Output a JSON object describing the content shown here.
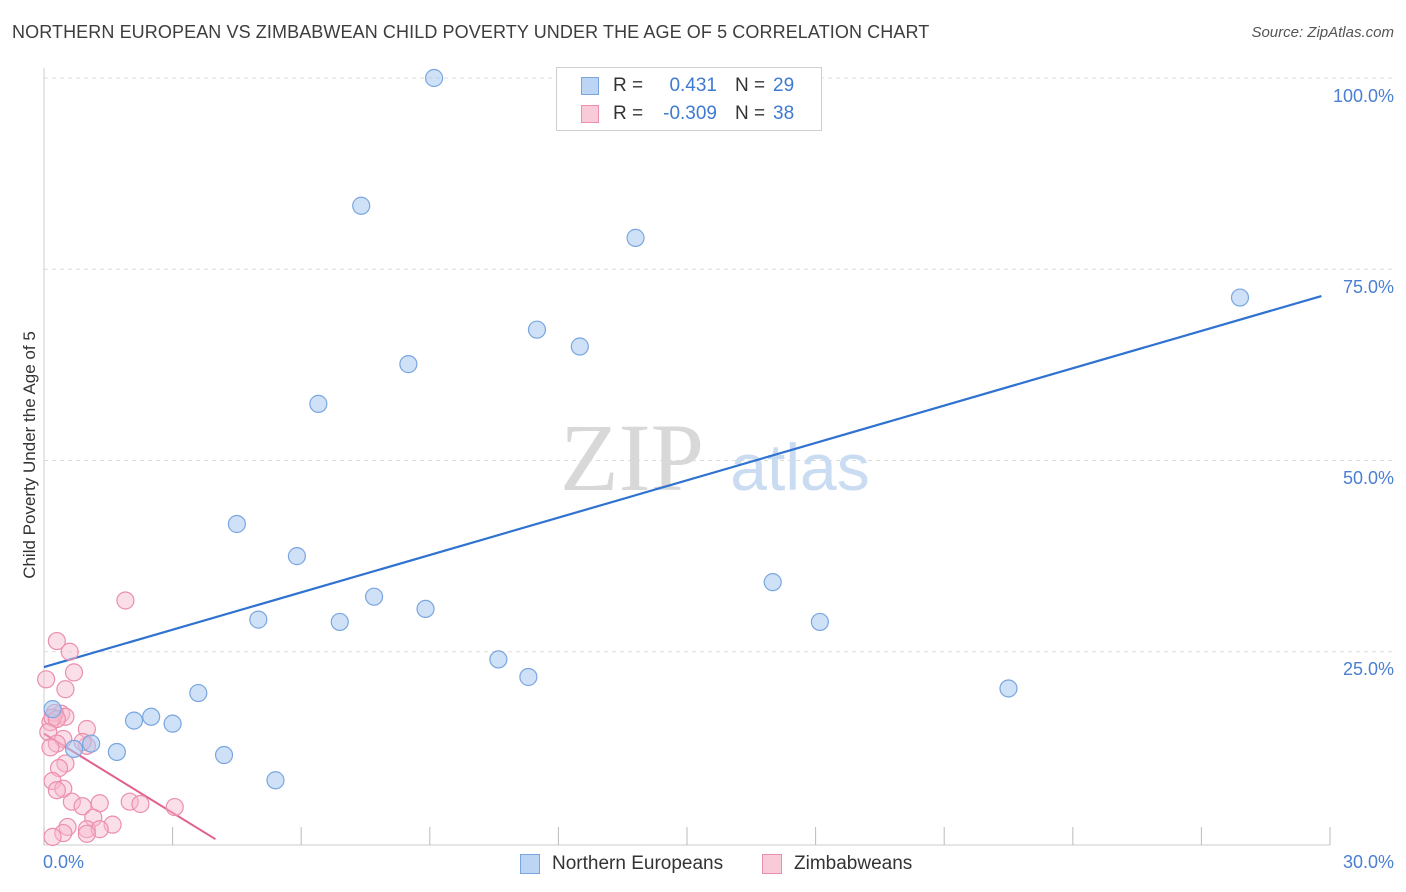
{
  "header": {
    "title": "NORTHERN EUROPEAN VS ZIMBABWEAN CHILD POVERTY UNDER THE AGE OF 5 CORRELATION CHART",
    "source": "Source: ZipAtlas.com"
  },
  "watermark": {
    "zip": "ZIP",
    "atlas": "atlas"
  },
  "legend_top": {
    "rows": [
      {
        "r_label": "R =",
        "r_value": "0.431",
        "n_label": "N =",
        "n_value": "29"
      },
      {
        "r_label": "R =",
        "r_value": "-0.309",
        "n_label": "N =",
        "n_value": "38"
      }
    ]
  },
  "legend_bottom": {
    "items": [
      {
        "label": "Northern Europeans"
      },
      {
        "label": "Zimbabweans"
      }
    ]
  },
  "colors": {
    "blue_fill": "#a8c8f0",
    "blue_stroke": "#7aa6e0",
    "blue_line": "#2f72d0",
    "pink_fill": "#f6b8cb",
    "pink_stroke": "#ec8fac",
    "pink_line": "#e0608f",
    "grid": "#dcdcdc",
    "tick_text": "#4a7fd4"
  },
  "chart_data": {
    "type": "scatter",
    "title": "NORTHERN EUROPEAN VS ZIMBABWEAN CHILD POVERTY UNDER THE AGE OF 5 CORRELATION CHART",
    "xlabel": "",
    "ylabel": "Child Poverty Under the Age of 5",
    "xlim": [
      0,
      30
    ],
    "ylim": [
      0,
      100
    ],
    "x_tick_labels": [
      "0.0%",
      "30.0%"
    ],
    "y_ticks": [
      25,
      50,
      75,
      100
    ],
    "y_tick_labels": [
      "25.0%",
      "50.0%",
      "75.0%",
      "100.0%"
    ],
    "grid": true,
    "legend_position": "top-center",
    "series": [
      {
        "name": "Northern Europeans",
        "R": 0.431,
        "N": 29,
        "points": [
          [
            9.1,
            100.0
          ],
          [
            7.4,
            83.3
          ],
          [
            13.8,
            79.1
          ],
          [
            27.9,
            71.3
          ],
          [
            11.5,
            67.1
          ],
          [
            12.5,
            64.9
          ],
          [
            8.5,
            62.6
          ],
          [
            6.4,
            57.4
          ],
          [
            4.5,
            41.7
          ],
          [
            5.9,
            37.5
          ],
          [
            7.7,
            32.2
          ],
          [
            17.0,
            34.1
          ],
          [
            8.9,
            30.6
          ],
          [
            5.0,
            29.2
          ],
          [
            6.9,
            28.9
          ],
          [
            18.1,
            28.9
          ],
          [
            10.6,
            24.0
          ],
          [
            11.3,
            21.7
          ],
          [
            22.5,
            20.2
          ],
          [
            3.6,
            19.6
          ],
          [
            2.5,
            16.5
          ],
          [
            2.1,
            16.0
          ],
          [
            3.0,
            15.6
          ],
          [
            0.2,
            17.5
          ],
          [
            1.1,
            13.0
          ],
          [
            0.7,
            12.3
          ],
          [
            1.7,
            11.9
          ],
          [
            4.2,
            11.5
          ],
          [
            5.4,
            8.2
          ]
        ],
        "trend": {
          "x": [
            0.0,
            29.8
          ],
          "y": [
            23.0,
            71.5
          ]
        }
      },
      {
        "name": "Zimbabweans",
        "R": -0.309,
        "N": 38,
        "points": [
          [
            1.9,
            31.7
          ],
          [
            0.3,
            26.4
          ],
          [
            0.6,
            25.0
          ],
          [
            0.7,
            22.3
          ],
          [
            0.05,
            21.4
          ],
          [
            0.5,
            20.1
          ],
          [
            0.4,
            16.9
          ],
          [
            0.5,
            16.5
          ],
          [
            0.25,
            17.0
          ],
          [
            0.15,
            15.8
          ],
          [
            0.2,
            16.4
          ],
          [
            0.3,
            16.2
          ],
          [
            0.1,
            14.5
          ],
          [
            1.0,
            14.9
          ],
          [
            0.45,
            13.6
          ],
          [
            0.3,
            13.0
          ],
          [
            0.15,
            12.5
          ],
          [
            1.0,
            12.7
          ],
          [
            0.9,
            13.2
          ],
          [
            0.5,
            10.4
          ],
          [
            0.35,
            9.8
          ],
          [
            0.2,
            8.1
          ],
          [
            0.45,
            7.1
          ],
          [
            0.3,
            6.9
          ],
          [
            0.65,
            5.4
          ],
          [
            0.9,
            4.8
          ],
          [
            1.3,
            5.2
          ],
          [
            2.0,
            5.4
          ],
          [
            2.25,
            5.1
          ],
          [
            3.05,
            4.7
          ],
          [
            1.15,
            3.3
          ],
          [
            1.6,
            2.4
          ],
          [
            0.55,
            2.1
          ],
          [
            1.0,
            1.8
          ],
          [
            1.3,
            1.8
          ],
          [
            0.45,
            1.3
          ],
          [
            0.2,
            0.8
          ],
          [
            1.0,
            1.2
          ]
        ],
        "trend": {
          "x": [
            0.0,
            4.0
          ],
          "y": [
            14.3,
            0.5
          ]
        }
      }
    ]
  }
}
